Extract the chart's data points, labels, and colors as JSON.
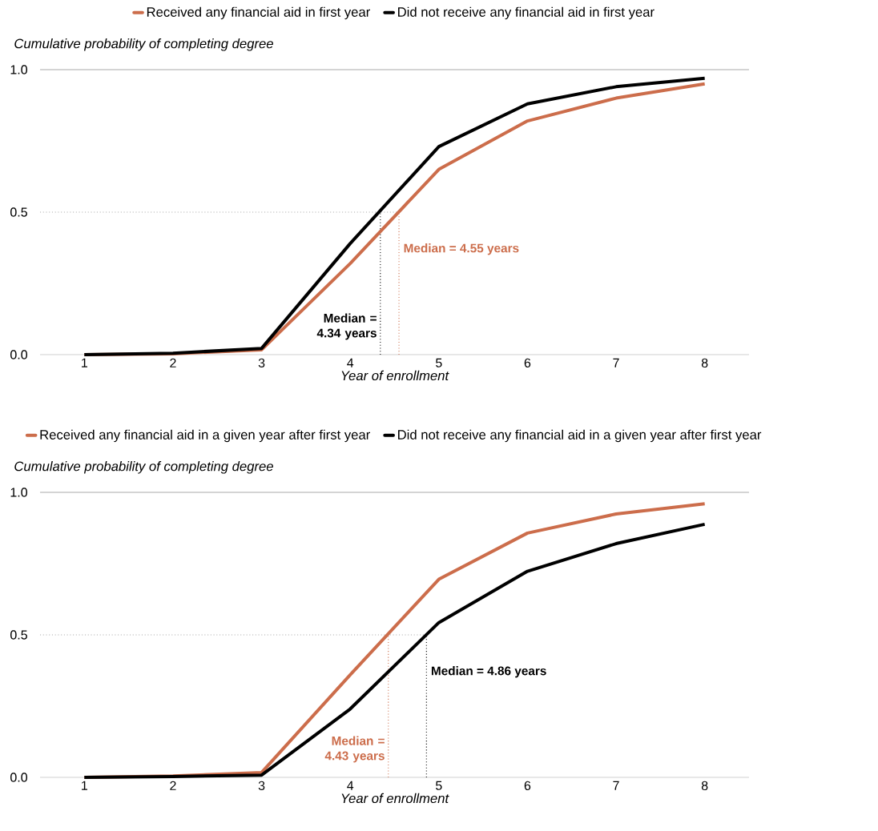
{
  "chart_data": [
    {
      "type": "line",
      "xlabel": "Year of enrollment",
      "ylabel": "Cumulative probability of completing degree",
      "x": [
        1,
        2,
        3,
        4,
        5,
        6,
        7,
        8
      ],
      "series": [
        {
          "name": "Received any financial aid in first year",
          "color": "#cc6d4b",
          "values": [
            0,
            0.003,
            0.017,
            0.32,
            0.65,
            0.82,
            0.9,
            0.95
          ]
        },
        {
          "name": "Did not receive any financial aid in first year",
          "color": "#000000",
          "values": [
            0,
            0.005,
            0.022,
            0.39,
            0.73,
            0.88,
            0.94,
            0.97
          ]
        }
      ],
      "xlim": [
        0.5,
        8.5
      ],
      "ylim": [
        0,
        1
      ],
      "xticks": [
        1,
        2,
        3,
        4,
        5,
        6,
        7,
        8
      ],
      "yticks": [
        {
          "value": 0,
          "label": "0.0"
        },
        {
          "value": 0.5,
          "label": "0.5"
        },
        {
          "value": 1,
          "label": "1.0"
        }
      ],
      "ref_lines": [
        {
          "axis": "y",
          "value": 1,
          "label": null,
          "color": "#aaaaaa",
          "line_style": "solid"
        },
        {
          "axis": "y",
          "value": 0.5,
          "label": null,
          "color": "#aaaaaa",
          "line_style": "dotted"
        },
        {
          "axis": "x",
          "value": 4.34,
          "label": "Median = 4.34 years",
          "color": "#000000",
          "line_style": "dotted"
        },
        {
          "axis": "x",
          "value": 4.55,
          "label": "Median = 4.55 years",
          "color": "#cc6d4b",
          "line_style": "dotted"
        }
      ],
      "legend": "top",
      "grid": false,
      "marker": "none",
      "line_style": "solid"
    },
    {
      "type": "line",
      "xlabel": "Year of enrollment",
      "ylabel": "Cumulative probability of completing degree",
      "x": [
        1,
        2,
        3,
        4,
        5,
        6,
        7,
        8
      ],
      "series": [
        {
          "name": "Received any financial aid in a given year after first year",
          "color": "#cc6d4b",
          "values": [
            0,
            0.005,
            0.017,
            0.36,
            0.695,
            0.857,
            0.924,
            0.96
          ]
        },
        {
          "name": "Did not receive any financial aid in a given year after first year",
          "color": "#000000",
          "values": [
            0,
            0.003,
            0.008,
            0.24,
            0.543,
            0.723,
            0.82,
            0.888
          ]
        }
      ],
      "xlim": [
        0.5,
        8.5
      ],
      "ylim": [
        0,
        1
      ],
      "xticks": [
        1,
        2,
        3,
        4,
        5,
        6,
        7,
        8
      ],
      "yticks": [
        {
          "value": 0,
          "label": "0.0"
        },
        {
          "value": 0.5,
          "label": "0.5"
        },
        {
          "value": 1,
          "label": "1.0"
        }
      ],
      "ref_lines": [
        {
          "axis": "y",
          "value": 1,
          "label": null,
          "color": "#aaaaaa",
          "line_style": "solid"
        },
        {
          "axis": "y",
          "value": 0.5,
          "label": null,
          "color": "#aaaaaa",
          "line_style": "dotted"
        },
        {
          "axis": "x",
          "value": 4.43,
          "label": "Median = 4.43 years",
          "color": "#cc6d4b",
          "line_style": "dotted"
        },
        {
          "axis": "x",
          "value": 4.86,
          "label": "Median = 4.86 years",
          "color": "#000000",
          "line_style": "dotted"
        }
      ],
      "legend": "top",
      "grid": false,
      "marker": "none",
      "line_style": "solid"
    }
  ]
}
